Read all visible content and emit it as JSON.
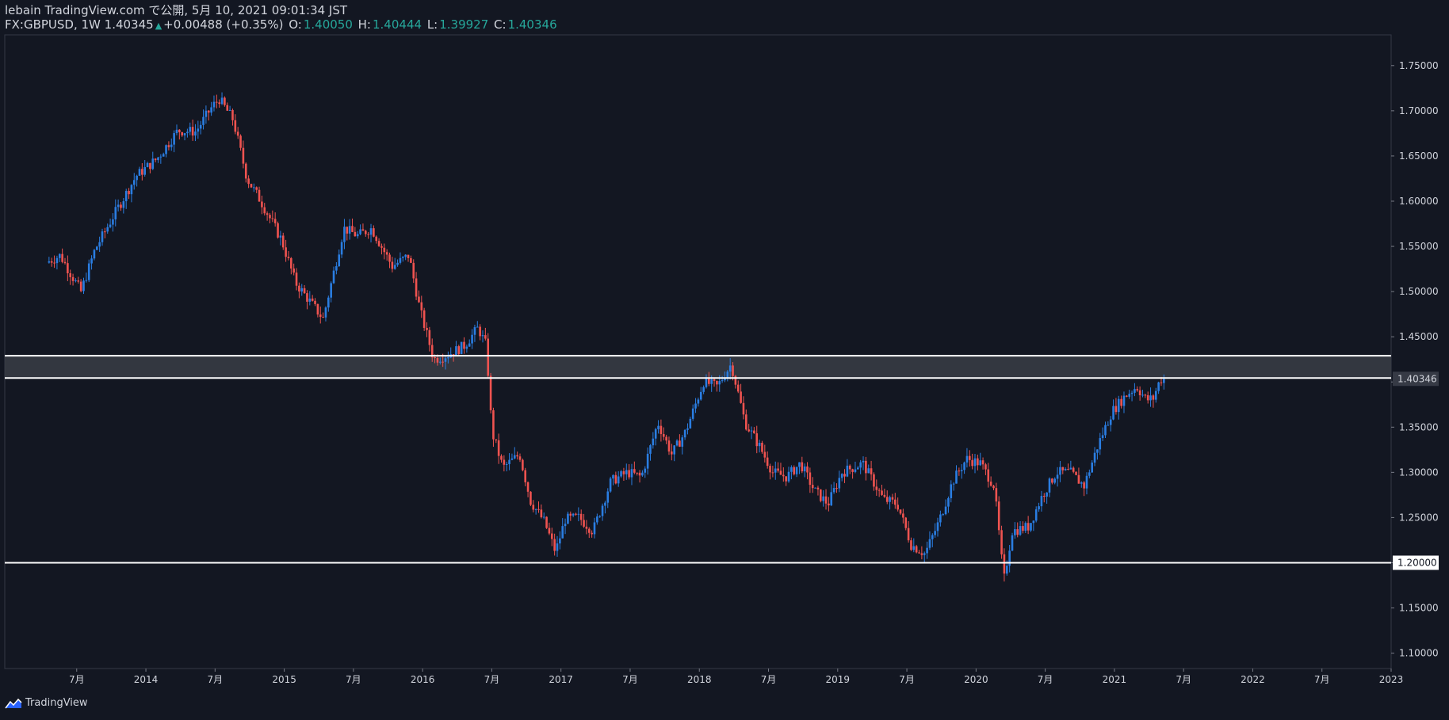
{
  "header": {
    "line1": "lebain TradingView.com で公開, 5月 10, 2021 09:01:34 JST",
    "symbol": "FX:GBPUSD, 1W 1.40345",
    "change_arrow": "▲",
    "change": "+0.00488 (+0.35%)",
    "o_label": "O:",
    "o_value": "1.40050",
    "h_label": "H:",
    "h_value": "1.40444",
    "l_label": "L:",
    "l_value": "1.39927",
    "c_label": "C:",
    "c_value": "1.40346"
  },
  "footer": {
    "brand": "TradingView"
  },
  "colors": {
    "background": "#131722",
    "up": "#2a7de1",
    "down": "#ef5350",
    "line": "#ffffff",
    "zone": "#3a3d45"
  },
  "chart_data": {
    "type": "candlestick",
    "y_ticks": [
      "1.75000",
      "1.70000",
      "1.65000",
      "1.60000",
      "1.55000",
      "1.50000",
      "1.45000",
      "1.40000",
      "1.35000",
      "1.30000",
      "1.25000",
      "1.20000",
      "1.15000",
      "1.10000"
    ],
    "ylim": [
      1.083,
      1.784
    ],
    "x_ticks": [
      "7月",
      "2014",
      "7月",
      "2015",
      "7月",
      "2016",
      "7月",
      "2017",
      "7月",
      "2018",
      "7月",
      "2019",
      "7月",
      "2020",
      "7月",
      "2021",
      "7月",
      "2022",
      "7月",
      "2023"
    ],
    "price_label": "1.40346",
    "support_label": "1.20000",
    "resistance_zone": [
      1.4044,
      1.429
    ],
    "support_line": 1.2,
    "anchors": [
      [
        2013.3,
        1.532
      ],
      [
        2013.4,
        1.54
      ],
      [
        2013.55,
        1.5
      ],
      [
        2013.65,
        1.546
      ],
      [
        2013.8,
        1.588
      ],
      [
        2013.95,
        1.628
      ],
      [
        2014.1,
        1.647
      ],
      [
        2014.25,
        1.678
      ],
      [
        2014.38,
        1.677
      ],
      [
        2014.5,
        1.705
      ],
      [
        2014.55,
        1.713
      ],
      [
        2014.65,
        1.69
      ],
      [
        2014.75,
        1.625
      ],
      [
        2014.85,
        1.6
      ],
      [
        2015.0,
        1.557
      ],
      [
        2015.1,
        1.51
      ],
      [
        2015.2,
        1.49
      ],
      [
        2015.3,
        1.47
      ],
      [
        2015.45,
        1.57
      ],
      [
        2015.55,
        1.562
      ],
      [
        2015.65,
        1.57
      ],
      [
        2015.8,
        1.528
      ],
      [
        2015.92,
        1.54
      ],
      [
        2016.0,
        1.48
      ],
      [
        2016.1,
        1.425
      ],
      [
        2016.2,
        1.43
      ],
      [
        2016.32,
        1.44
      ],
      [
        2016.42,
        1.46
      ],
      [
        2016.48,
        1.44
      ],
      [
        2016.52,
        1.345
      ],
      [
        2016.6,
        1.305
      ],
      [
        2016.72,
        1.32
      ],
      [
        2016.8,
        1.268
      ],
      [
        2016.9,
        1.245
      ],
      [
        2016.98,
        1.212
      ],
      [
        2017.05,
        1.248
      ],
      [
        2017.15,
        1.25
      ],
      [
        2017.25,
        1.235
      ],
      [
        2017.38,
        1.29
      ],
      [
        2017.5,
        1.3
      ],
      [
        2017.6,
        1.295
      ],
      [
        2017.72,
        1.355
      ],
      [
        2017.82,
        1.32
      ],
      [
        2017.92,
        1.345
      ],
      [
        2018.05,
        1.4
      ],
      [
        2018.15,
        1.395
      ],
      [
        2018.25,
        1.42
      ],
      [
        2018.35,
        1.355
      ],
      [
        2018.45,
        1.33
      ],
      [
        2018.55,
        1.3
      ],
      [
        2018.65,
        1.295
      ],
      [
        2018.75,
        1.31
      ],
      [
        2018.85,
        1.28
      ],
      [
        2018.95,
        1.265
      ],
      [
        2019.05,
        1.3
      ],
      [
        2019.2,
        1.31
      ],
      [
        2019.35,
        1.27
      ],
      [
        2019.45,
        1.265
      ],
      [
        2019.55,
        1.22
      ],
      [
        2019.65,
        1.21
      ],
      [
        2019.75,
        1.245
      ],
      [
        2019.85,
        1.29
      ],
      [
        2019.95,
        1.315
      ],
      [
        2020.05,
        1.31
      ],
      [
        2020.15,
        1.285
      ],
      [
        2020.22,
        1.18
      ],
      [
        2020.28,
        1.235
      ],
      [
        2020.4,
        1.24
      ],
      [
        2020.5,
        1.275
      ],
      [
        2020.6,
        1.3
      ],
      [
        2020.7,
        1.3
      ],
      [
        2020.8,
        1.285
      ],
      [
        2020.9,
        1.33
      ],
      [
        2021.0,
        1.367
      ],
      [
        2021.1,
        1.385
      ],
      [
        2021.18,
        1.395
      ],
      [
        2021.25,
        1.38
      ],
      [
        2021.3,
        1.382
      ],
      [
        2021.35,
        1.403
      ]
    ],
    "x_range": [
      2013.3,
      2021.36
    ]
  }
}
